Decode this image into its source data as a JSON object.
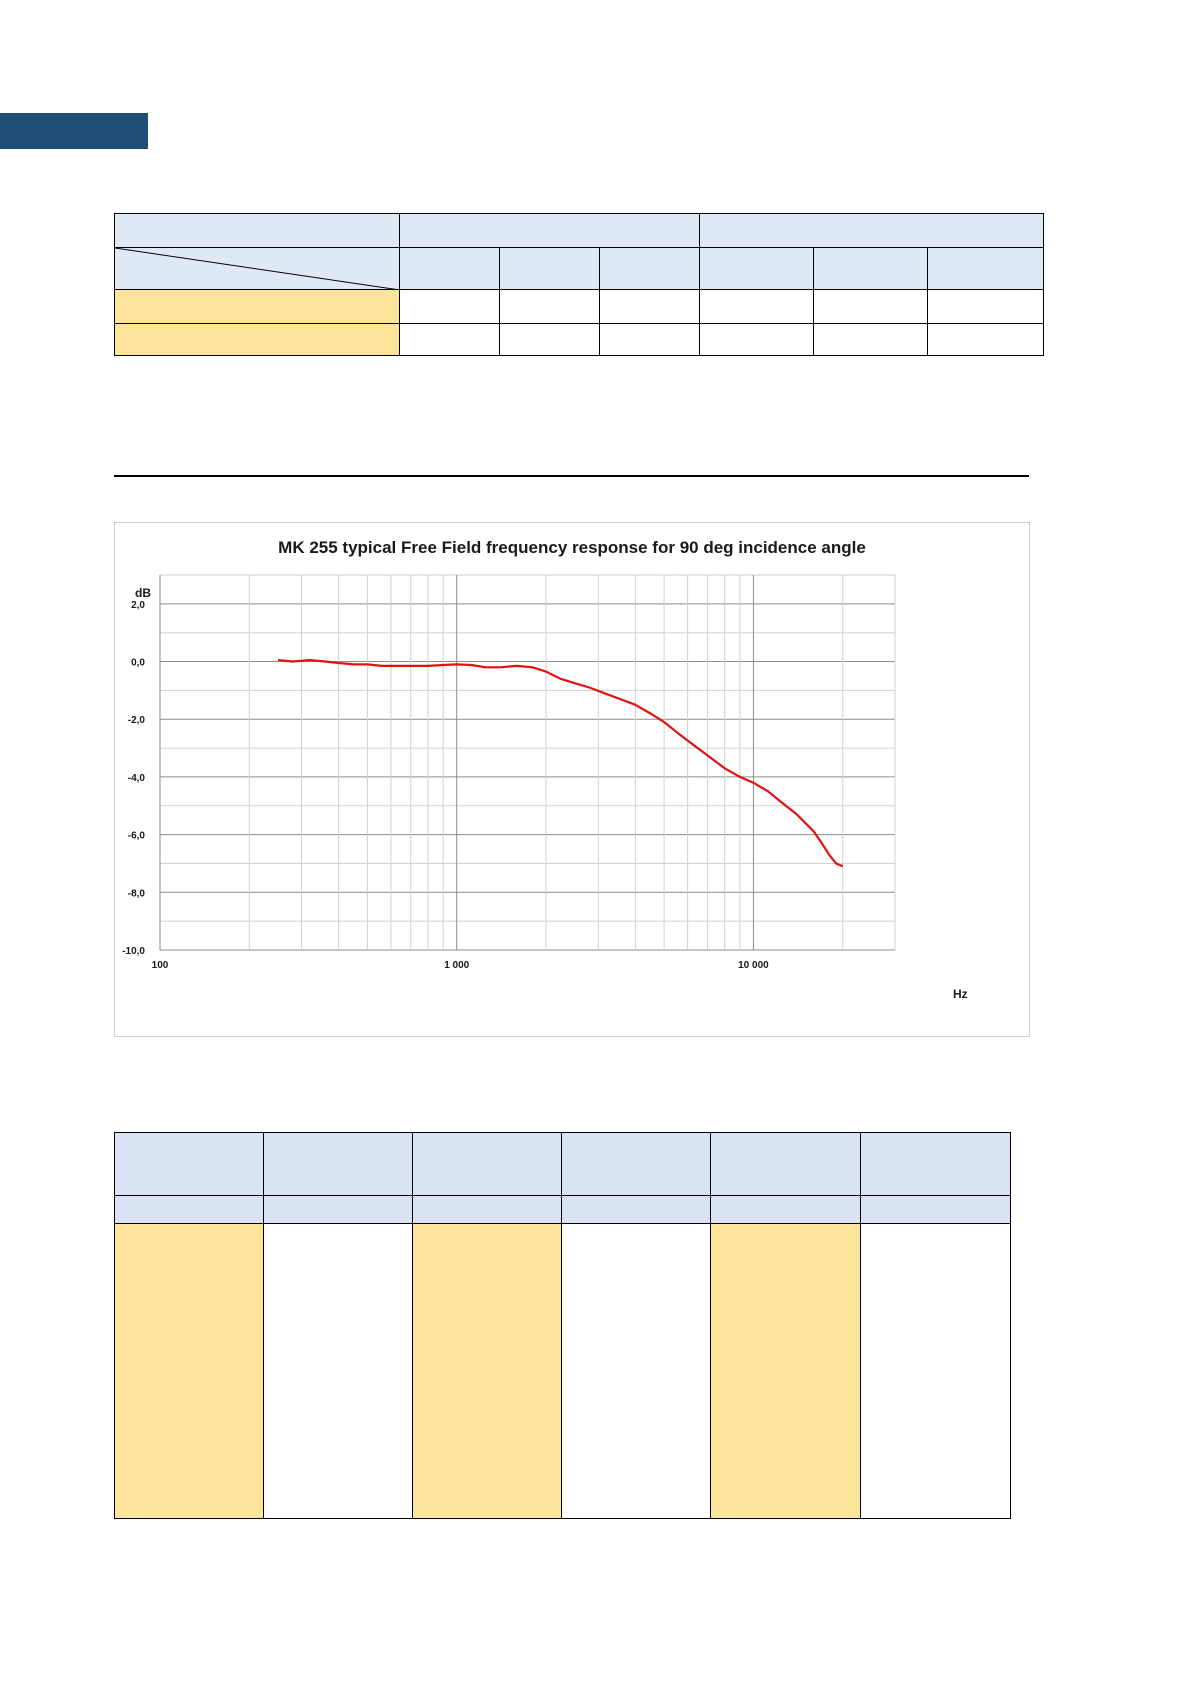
{
  "colors": {
    "header_bar": "#1f4e79",
    "table_header": "#dfe9f5",
    "table_label": "#fde49b",
    "curve": "#e31010"
  },
  "chart_data": {
    "type": "line",
    "title": "MK 255 typical Free Field frequency response for 90 deg incidence angle",
    "ylabel": "dB",
    "xlabel": "Hz",
    "x_scale": "log",
    "xlim": [
      100,
      30000
    ],
    "ylim": [
      -10,
      3
    ],
    "grid": true,
    "x_ticks": [
      {
        "value": 100,
        "label": "100"
      },
      {
        "value": 1000,
        "label": "1 000"
      },
      {
        "value": 10000,
        "label": "10 000"
      }
    ],
    "y_ticks": [
      {
        "value": 2,
        "label": "2,0"
      },
      {
        "value": 0,
        "label": "0,0"
      },
      {
        "value": -2,
        "label": "-2,0"
      },
      {
        "value": -4,
        "label": "-4,0"
      },
      {
        "value": -6,
        "label": "-6,0"
      },
      {
        "value": -8,
        "label": "-8,0"
      },
      {
        "value": -10,
        "label": "-10,0"
      }
    ],
    "series": [
      {
        "color": "#e31010",
        "x": [
          250,
          280,
          320,
          360,
          400,
          450,
          500,
          560,
          630,
          710,
          800,
          900,
          1000,
          1120,
          1250,
          1400,
          1600,
          1800,
          2000,
          2240,
          2500,
          2800,
          3150,
          3550,
          4000,
          4500,
          5000,
          5600,
          6300,
          7100,
          8000,
          9000,
          10000,
          11200,
          12500,
          14000,
          16000,
          17000,
          18000,
          19000,
          20000
        ],
        "y": [
          0.05,
          0.0,
          0.05,
          0.0,
          -0.05,
          -0.1,
          -0.1,
          -0.15,
          -0.15,
          -0.15,
          -0.15,
          -0.12,
          -0.1,
          -0.12,
          -0.2,
          -0.2,
          -0.15,
          -0.2,
          -0.35,
          -0.6,
          -0.75,
          -0.9,
          -1.1,
          -1.3,
          -1.5,
          -1.8,
          -2.1,
          -2.5,
          -2.9,
          -3.3,
          -3.7,
          -4.0,
          -4.2,
          -4.5,
          -4.9,
          -5.3,
          -5.9,
          -6.3,
          -6.7,
          -7.0,
          -7.1
        ]
      }
    ]
  }
}
